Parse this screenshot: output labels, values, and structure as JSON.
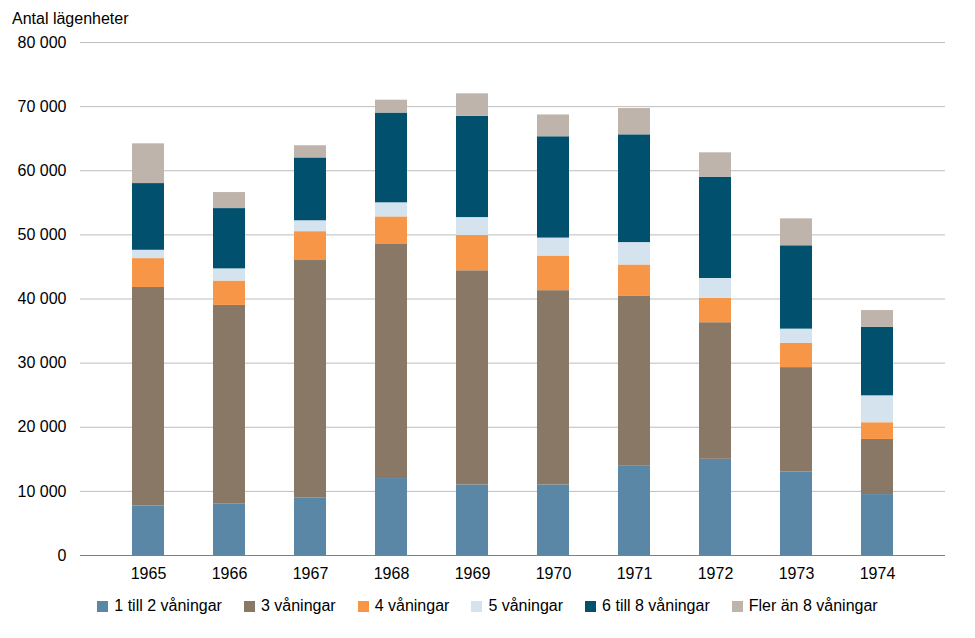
{
  "chart_data": {
    "type": "bar",
    "stacked": true,
    "y_label": "Antal lägenheter",
    "categories": [
      "1965",
      "1966",
      "1967",
      "1968",
      "1969",
      "1970",
      "1971",
      "1972",
      "1973",
      "1974"
    ],
    "series": [
      {
        "name": "1 till 2 våningar",
        "color": "#5b87a6",
        "values": [
          7700,
          8000,
          9000,
          12000,
          11000,
          11000,
          14000,
          15000,
          13000,
          9500
        ]
      },
      {
        "name": "3 våningar",
        "color": "#8a7866",
        "values": [
          34100,
          31000,
          37000,
          36600,
          33400,
          30300,
          26400,
          21300,
          16300,
          8600
        ]
      },
      {
        "name": "4 våningar",
        "color": "#f79646",
        "values": [
          4500,
          3800,
          4500,
          4200,
          5500,
          5400,
          4900,
          3800,
          3800,
          2600
        ]
      },
      {
        "name": "5 våningar",
        "color": "#d4e3ee",
        "values": [
          1300,
          1900,
          1700,
          2200,
          2800,
          2800,
          3500,
          3100,
          2200,
          4200
        ]
      },
      {
        "name": "6 till 8 våningar",
        "color": "#00506e",
        "values": [
          10400,
          9400,
          9800,
          14000,
          15800,
          15800,
          16800,
          15800,
          13000,
          10700
        ]
      },
      {
        "name": "Fler än 8 våningar",
        "color": "#bfb4ab",
        "values": [
          6200,
          2500,
          1900,
          2000,
          3500,
          3400,
          4100,
          3800,
          4200,
          2600
        ]
      }
    ],
    "ylim": [
      0,
      80000
    ],
    "yticks": [
      0,
      {
        "value": 10000,
        "label": "10 000"
      },
      {
        "value": 20000,
        "label": "20 000"
      },
      {
        "value": 30000,
        "label": "30 000"
      },
      {
        "value": 40000,
        "label": "40 000"
      },
      {
        "value": 50000,
        "label": "50 000"
      },
      {
        "value": 60000,
        "label": "60 000"
      },
      {
        "value": 70000,
        "label": "70 000"
      },
      {
        "value": 80000,
        "label": "80 000"
      }
    ],
    "grid": true,
    "legend": "bottom"
  }
}
